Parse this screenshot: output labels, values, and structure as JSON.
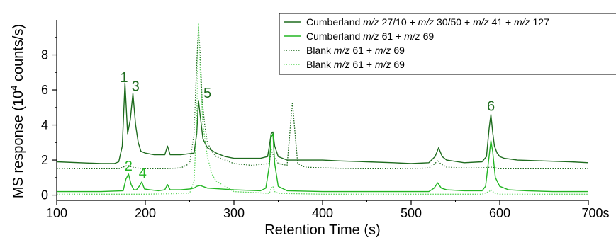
{
  "chart_data": {
    "type": "line",
    "xlabel": "Retention Time (s)",
    "ylabel_parts": [
      "MS response (10",
      "4",
      " counts/s)"
    ],
    "xlim": [
      100,
      700
    ],
    "ylim": [
      -0.3,
      10.0
    ],
    "xticks": [
      100,
      200,
      300,
      400,
      500,
      600,
      700
    ],
    "xtick_labels": [
      "100",
      "200",
      "300",
      "400",
      "500",
      "600",
      "700s"
    ],
    "yticks": [
      0,
      2,
      4,
      6,
      8
    ],
    "ytick_labels": [
      "0",
      "2",
      "4",
      "6",
      "8"
    ],
    "legend_position": "top-right",
    "series": [
      {
        "name_parts": [
          "Cumberland ",
          "m/z",
          " 27/10 + ",
          "m/z",
          " 30/50 + ",
          "m/z",
          " 41 + ",
          "m/z",
          " 127"
        ],
        "color": "#1e6b1e",
        "style": "solid",
        "x": [
          100,
          150,
          165,
          170,
          174,
          177,
          180,
          183,
          186,
          189,
          192,
          195,
          200,
          210,
          222,
          225,
          228,
          240,
          255,
          258,
          260,
          262,
          265,
          270,
          280,
          290,
          300,
          310,
          320,
          330,
          338,
          340,
          342,
          344,
          346,
          350,
          360,
          380,
          400,
          420,
          450,
          480,
          500,
          520,
          527,
          531,
          535,
          540,
          560,
          580,
          585,
          588,
          590,
          592,
          594,
          597,
          600,
          605,
          620,
          650,
          680,
          700
        ],
        "y": [
          1.9,
          1.8,
          1.8,
          1.9,
          2.8,
          6.4,
          3.5,
          4.3,
          5.8,
          4.0,
          3.0,
          2.5,
          2.4,
          2.3,
          2.3,
          2.8,
          2.3,
          2.3,
          2.4,
          3.5,
          5.4,
          4.5,
          3.2,
          2.7,
          2.4,
          2.2,
          2.1,
          2.1,
          2.1,
          2.1,
          2.2,
          2.8,
          3.5,
          3.6,
          2.8,
          2.2,
          2.0,
          2.0,
          2.0,
          1.95,
          1.9,
          1.85,
          1.8,
          1.85,
          2.2,
          2.7,
          2.2,
          2.0,
          1.85,
          1.9,
          2.2,
          3.8,
          4.6,
          3.6,
          2.8,
          2.4,
          2.2,
          2.1,
          2.0,
          1.95,
          1.9,
          1.85
        ]
      },
      {
        "name_parts": [
          "Cumberland ",
          "m/z",
          " 61 + ",
          "m/z",
          " 69"
        ],
        "color": "#22b522",
        "style": "solid",
        "x": [
          100,
          150,
          175,
          178,
          181,
          184,
          187,
          190,
          193,
          196,
          199,
          205,
          215,
          222,
          225,
          228,
          240,
          250,
          255,
          258,
          262,
          270,
          300,
          330,
          336,
          340,
          342,
          344,
          346,
          350,
          360,
          400,
          450,
          500,
          520,
          526,
          530,
          534,
          540,
          560,
          580,
          584,
          587,
          590,
          592,
          595,
          600,
          610,
          630,
          660,
          700
        ],
        "y": [
          0.2,
          0.2,
          0.25,
          0.9,
          1.2,
          0.6,
          0.3,
          0.3,
          0.5,
          0.75,
          0.35,
          0.3,
          0.25,
          0.3,
          0.6,
          0.3,
          0.3,
          0.35,
          0.4,
          0.5,
          0.55,
          0.4,
          0.3,
          0.25,
          0.4,
          1.7,
          3.3,
          3.5,
          1.8,
          0.5,
          0.25,
          0.2,
          0.2,
          0.2,
          0.2,
          0.4,
          0.7,
          0.4,
          0.3,
          0.25,
          0.25,
          0.5,
          1.8,
          3.1,
          2.5,
          1.0,
          0.5,
          0.3,
          0.25,
          0.2,
          0.2
        ]
      },
      {
        "name_parts": [
          "Blank ",
          "m/z",
          " 61 + ",
          "m/z",
          " 69"
        ],
        "color": "#1e6b1e",
        "style": "dotted",
        "x": [
          100,
          150,
          170,
          175,
          180,
          185,
          190,
          200,
          220,
          240,
          250,
          255,
          258,
          260,
          262,
          264,
          267,
          270,
          275,
          280,
          290,
          300,
          320,
          340,
          342,
          345,
          350,
          360,
          363,
          366,
          369,
          372,
          380,
          400,
          450,
          500,
          520,
          527,
          530,
          533,
          540,
          560,
          580,
          590,
          595,
          600,
          650,
          700
        ],
        "y": [
          1.5,
          1.5,
          1.5,
          1.6,
          1.7,
          1.6,
          1.55,
          1.5,
          1.5,
          1.55,
          1.8,
          3.5,
          7.5,
          9.6,
          8.0,
          5.5,
          4.0,
          3.0,
          2.5,
          2.2,
          2.0,
          1.8,
          1.7,
          1.8,
          2.6,
          2.2,
          1.8,
          1.7,
          3.5,
          5.3,
          3.5,
          1.8,
          1.6,
          1.55,
          1.5,
          1.5,
          1.55,
          1.8,
          2.0,
          1.8,
          1.6,
          1.55,
          1.55,
          1.6,
          1.55,
          1.5,
          1.5,
          1.5
        ]
      },
      {
        "name_parts": [
          "Blank ",
          "m/z",
          " 61 + ",
          "m/z",
          " 69"
        ],
        "color": "#5fd65f",
        "style": "dotted",
        "x": [
          100,
          150,
          200,
          250,
          255,
          258,
          260,
          262,
          265,
          270,
          275,
          280,
          300,
          340,
          342,
          344,
          346,
          350,
          400,
          500,
          580,
          588,
          590,
          592,
          595,
          600,
          700
        ],
        "y": [
          0.05,
          0.05,
          0.05,
          0.1,
          0.8,
          4.2,
          9.8,
          7.0,
          4.0,
          2.2,
          1.2,
          0.8,
          0.2,
          0.1,
          0.4,
          0.5,
          0.2,
          0.1,
          0.05,
          0.05,
          0.05,
          0.2,
          0.3,
          0.2,
          0.1,
          0.05,
          0.05
        ]
      }
    ],
    "annotations": [
      {
        "text": "1",
        "x": 176,
        "y": 6.45,
        "color": "#1e6b1e"
      },
      {
        "text": "3",
        "x": 189,
        "y": 5.95,
        "color": "#1e6b1e"
      },
      {
        "text": "5",
        "x": 270,
        "y": 5.55,
        "color": "#1e6b1e"
      },
      {
        "text": "6",
        "x": 590,
        "y": 4.8,
        "color": "#1e6b1e"
      },
      {
        "text": "2",
        "x": 181,
        "y": 1.4,
        "color": "#22b522"
      },
      {
        "text": "4",
        "x": 197,
        "y": 1.0,
        "color": "#22b522"
      }
    ]
  }
}
